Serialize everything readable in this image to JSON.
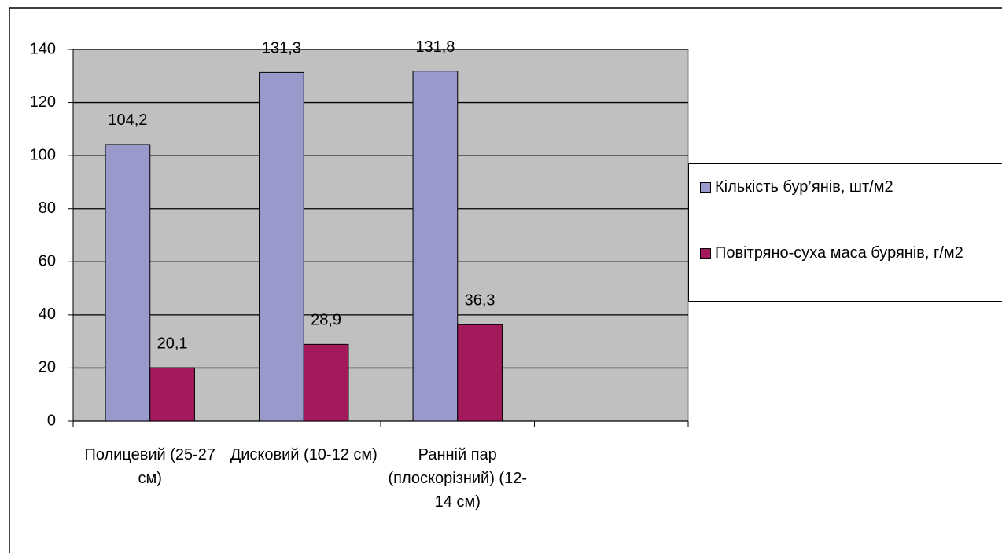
{
  "chart_data": {
    "type": "bar",
    "categories": [
      "Полицевий (25-27 см)",
      "Дисковий (10-12 см)",
      "Ранній пар (плоскорізний) (12-14 см)",
      null
    ],
    "series": [
      {
        "name": "Кількість бур’янів, шт/м2",
        "color": "#9999cc",
        "values": [
          104.2,
          131.3,
          131.8,
          null
        ],
        "value_labels": [
          "104,2",
          "131,3",
          "131,8",
          null
        ]
      },
      {
        "name": "Повітряно-суха маса бурянів, г/м2",
        "color": "#a3195b",
        "values": [
          20.1,
          28.9,
          36.3,
          null
        ],
        "value_labels": [
          "20,1",
          "28,9",
          "36,3",
          null
        ]
      }
    ],
    "ylim": [
      0,
      140
    ],
    "yticks": [
      0,
      20,
      40,
      60,
      80,
      100,
      120,
      140
    ],
    "grid": true,
    "plot_background": "#c0c0c0",
    "legend": "right"
  }
}
